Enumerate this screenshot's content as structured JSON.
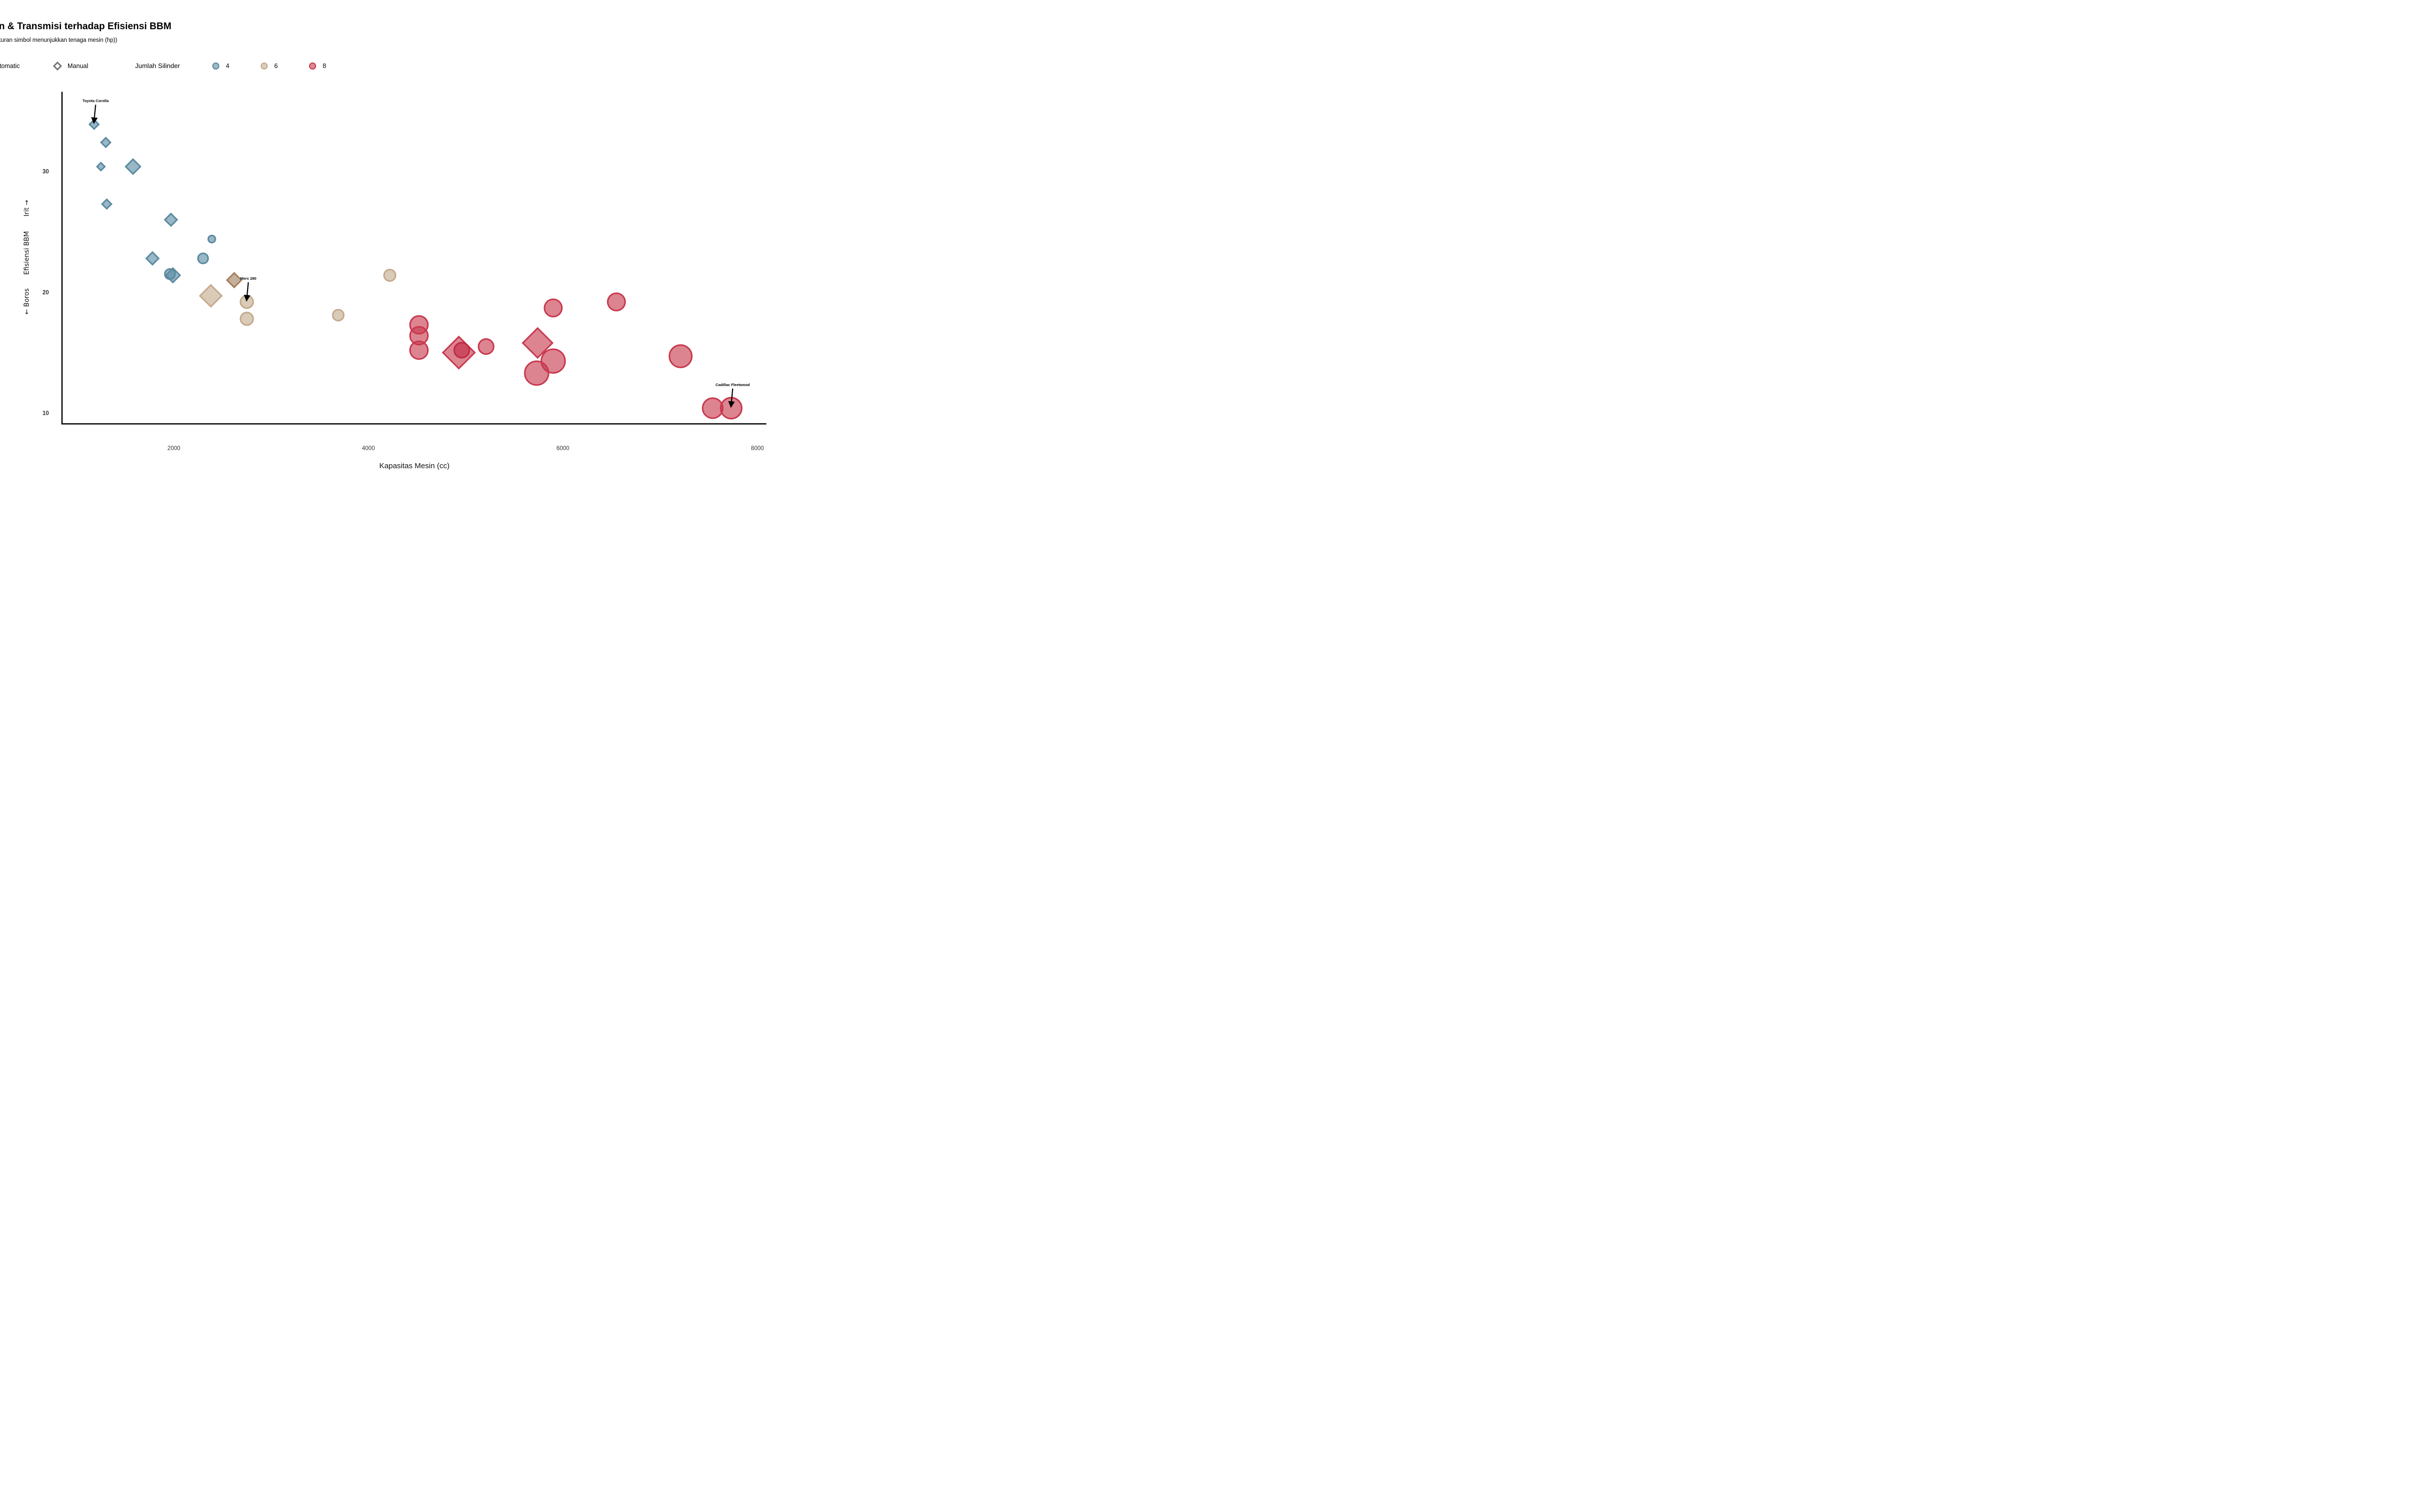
{
  "chart_data": {
    "type": "scatter",
    "title": "sin & Transmisi terhadap Efisiensi BBM",
    "subtitle": "kuran simbol menunjukkan tenaga mesin (hp))",
    "xlabel": "Kapasitas Mesin (cc)",
    "ylabel": "Efisiensi BBM",
    "ylabel_low": "← Boros",
    "ylabel_high": "Irit →",
    "xlim": [
      850,
      8050
    ],
    "ylim": [
      9.1,
      36.6
    ],
    "x_ticks": [
      2000,
      4000,
      6000,
      8000
    ],
    "y_ticks": [
      10,
      20,
      30
    ],
    "grid": false,
    "legend_placement": "top",
    "shape_legend": [
      {
        "label": "utomatic",
        "shape": "circle"
      },
      {
        "label": "Manual",
        "shape": "diamond"
      }
    ],
    "color_legend_title": "Jumlah Silinder",
    "color_legend": [
      {
        "label": "4",
        "color": "#5b8aa1"
      },
      {
        "label": "6",
        "color": "#c4aa8c"
      },
      {
        "label": "8",
        "color": "#c8384d"
      }
    ],
    "size_variable": "hp",
    "series": [
      {
        "cyl": "4",
        "color": "#5b8aa1",
        "points": [
          {
            "x": 1180,
            "y": 33.9,
            "hp": 65,
            "shape": "diamond"
          },
          {
            "x": 1300,
            "y": 32.4,
            "hp": 66,
            "shape": "diamond"
          },
          {
            "x": 1250,
            "y": 30.4,
            "hp": 52,
            "shape": "diamond"
          },
          {
            "x": 1580,
            "y": 30.4,
            "hp": 113,
            "shape": "diamond"
          },
          {
            "x": 1310,
            "y": 27.3,
            "hp": 66,
            "shape": "diamond"
          },
          {
            "x": 1970,
            "y": 26.0,
            "hp": 91,
            "shape": "diamond"
          },
          {
            "x": 2390,
            "y": 24.4,
            "hp": 62,
            "shape": "circle"
          },
          {
            "x": 1780,
            "y": 22.8,
            "hp": 93,
            "shape": "diamond"
          },
          {
            "x": 2300,
            "y": 22.8,
            "hp": 95,
            "shape": "circle"
          },
          {
            "x": 1990,
            "y": 21.4,
            "hp": 109,
            "shape": "diamond"
          },
          {
            "x": 1960,
            "y": 21.5,
            "hp": 97,
            "shape": "circle"
          }
        ]
      },
      {
        "cyl": "6",
        "color": "#c4aa8c",
        "points": [
          {
            "x": 2620,
            "y": 21.0,
            "hp": 110,
            "shape": "diamond",
            "color": "#a27e5e"
          },
          {
            "x": 4220,
            "y": 21.4,
            "hp": 110,
            "shape": "circle"
          },
          {
            "x": 2380,
            "y": 19.7,
            "hp": 175,
            "shape": "diamond"
          },
          {
            "x": 2750,
            "y": 19.2,
            "hp": 123,
            "shape": "circle"
          },
          {
            "x": 2750,
            "y": 17.8,
            "hp": 123,
            "shape": "circle"
          },
          {
            "x": 3690,
            "y": 18.1,
            "hp": 105,
            "shape": "circle"
          }
        ]
      },
      {
        "cyl": "8",
        "color": "#c8384d",
        "points": [
          {
            "x": 5900,
            "y": 18.7,
            "hp": 175,
            "shape": "circle"
          },
          {
            "x": 6550,
            "y": 19.2,
            "hp": 175,
            "shape": "circle"
          },
          {
            "x": 4520,
            "y": 17.3,
            "hp": 180,
            "shape": "circle"
          },
          {
            "x": 4520,
            "y": 16.4,
            "hp": 180,
            "shape": "circle"
          },
          {
            "x": 4520,
            "y": 15.2,
            "hp": 180,
            "shape": "circle"
          },
          {
            "x": 4930,
            "y": 15.0,
            "hp": 264,
            "shape": "diamond"
          },
          {
            "x": 4960,
            "y": 15.2,
            "hp": 150,
            "shape": "circle",
            "color": "#c02a43"
          },
          {
            "x": 5210,
            "y": 15.5,
            "hp": 150,
            "shape": "circle"
          },
          {
            "x": 5740,
            "y": 15.8,
            "hp": 245,
            "shape": "diamond"
          },
          {
            "x": 5900,
            "y": 14.3,
            "hp": 245,
            "shape": "circle"
          },
          {
            "x": 5730,
            "y": 13.3,
            "hp": 245,
            "shape": "circle"
          },
          {
            "x": 7210,
            "y": 14.7,
            "hp": 230,
            "shape": "circle"
          },
          {
            "x": 7540,
            "y": 10.4,
            "hp": 205,
            "shape": "circle"
          },
          {
            "x": 7730,
            "y": 10.4,
            "hp": 215,
            "shape": "circle"
          }
        ]
      }
    ],
    "annotations": [
      {
        "text": "Toyota Corolla",
        "x": 1180,
        "y": 33.9
      },
      {
        "text": "Merc 280",
        "x": 2750,
        "y": 19.2
      },
      {
        "text": "Cadillac Fleetwood",
        "x": 7730,
        "y": 10.4
      }
    ]
  }
}
